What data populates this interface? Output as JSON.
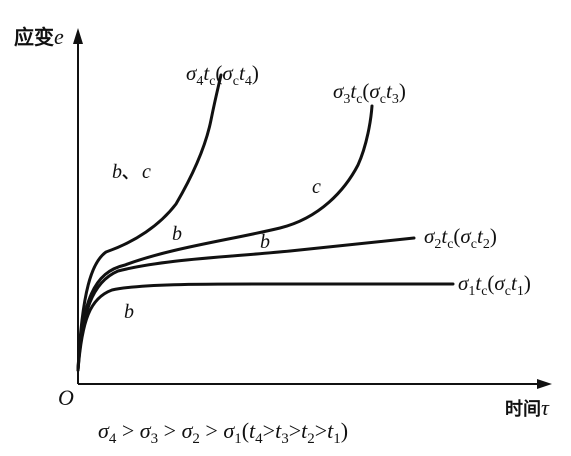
{
  "axes": {
    "y_label_prefix": "应变",
    "y_label_symbol": "e",
    "x_label_prefix": "时间",
    "x_label_symbol": "τ",
    "origin": "O"
  },
  "curves": [
    {
      "id": "sigma4",
      "sigma": "σ",
      "sigma_sub": "4",
      "t": "t",
      "t_sub": "c",
      "paren_open": "(",
      "sigma2": "σ",
      "sigma2_sub": "c",
      "t2": "t",
      "t2_sub": "4",
      "paren_close": ")"
    },
    {
      "id": "sigma3",
      "sigma": "σ",
      "sigma_sub": "3",
      "t": "t",
      "t_sub": "c",
      "paren_open": "(",
      "sigma2": "σ",
      "sigma2_sub": "c",
      "t2": "t",
      "t2_sub": "3",
      "paren_close": ")"
    },
    {
      "id": "sigma2",
      "sigma": "σ",
      "sigma_sub": "2",
      "t": "t",
      "t_sub": "c",
      "paren_open": "(",
      "sigma2": "σ",
      "sigma2_sub": "c",
      "t2": "t",
      "t2_sub": "2",
      "paren_close": ")"
    },
    {
      "id": "sigma1",
      "sigma": "σ",
      "sigma_sub": "1",
      "t": "t",
      "t_sub": "c",
      "paren_open": "(",
      "sigma2": "σ",
      "sigma2_sub": "c",
      "t2": "t",
      "t2_sub": "1",
      "paren_close": ")"
    }
  ],
  "stage_labels": {
    "bc_b": "b",
    "bc_sep": "、",
    "bc_c": "c",
    "b_on_sigma3": "b",
    "b_on_sigma2": "b",
    "b_on_sigma1": "b",
    "c_on_sigma3": "c"
  },
  "relation": {
    "s4": "σ",
    "s4_sub": "4",
    "gt1": " > ",
    "s3": "σ",
    "s3_sub": "3",
    "gt2": " > ",
    "s2": "σ",
    "s2_sub": "2",
    "gt3": " > ",
    "s1": "σ",
    "s1_sub": "1",
    "open": "(",
    "t4": "t",
    "t4_sub": "4",
    "gt4": ">",
    "t3": "t",
    "t3_sub": "3",
    "gt5": ">",
    "t2": "t",
    "t2_sub": "2",
    "gt6": ">",
    "t1": "t",
    "t1_sub": "1",
    "close": ")"
  }
}
